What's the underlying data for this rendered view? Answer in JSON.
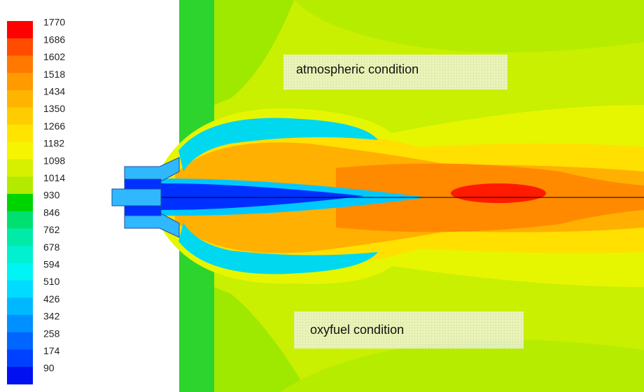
{
  "colorbar": {
    "labels": [
      "1770",
      "1686",
      "1602",
      "1518",
      "1434",
      "1350",
      "1266",
      "1182",
      "1098",
      "1014",
      "930",
      "846",
      "762",
      "678",
      "594",
      "510",
      "426",
      "342",
      "258",
      "174",
      "90"
    ],
    "colors": [
      "#ff0000",
      "#ff4c00",
      "#ff7800",
      "#ff9a00",
      "#ffb400",
      "#ffcc00",
      "#ffe400",
      "#f6f400",
      "#d6f000",
      "#b4ea00",
      "#00d400",
      "#00e070",
      "#00eaa8",
      "#00f0d0",
      "#00f4f4",
      "#00dcff",
      "#00b8ff",
      "#0090ff",
      "#0066ff",
      "#0040ff",
      "#0010f0"
    ]
  },
  "annotations": [
    "atmospheric condition",
    "oxyfuel condition"
  ]
}
